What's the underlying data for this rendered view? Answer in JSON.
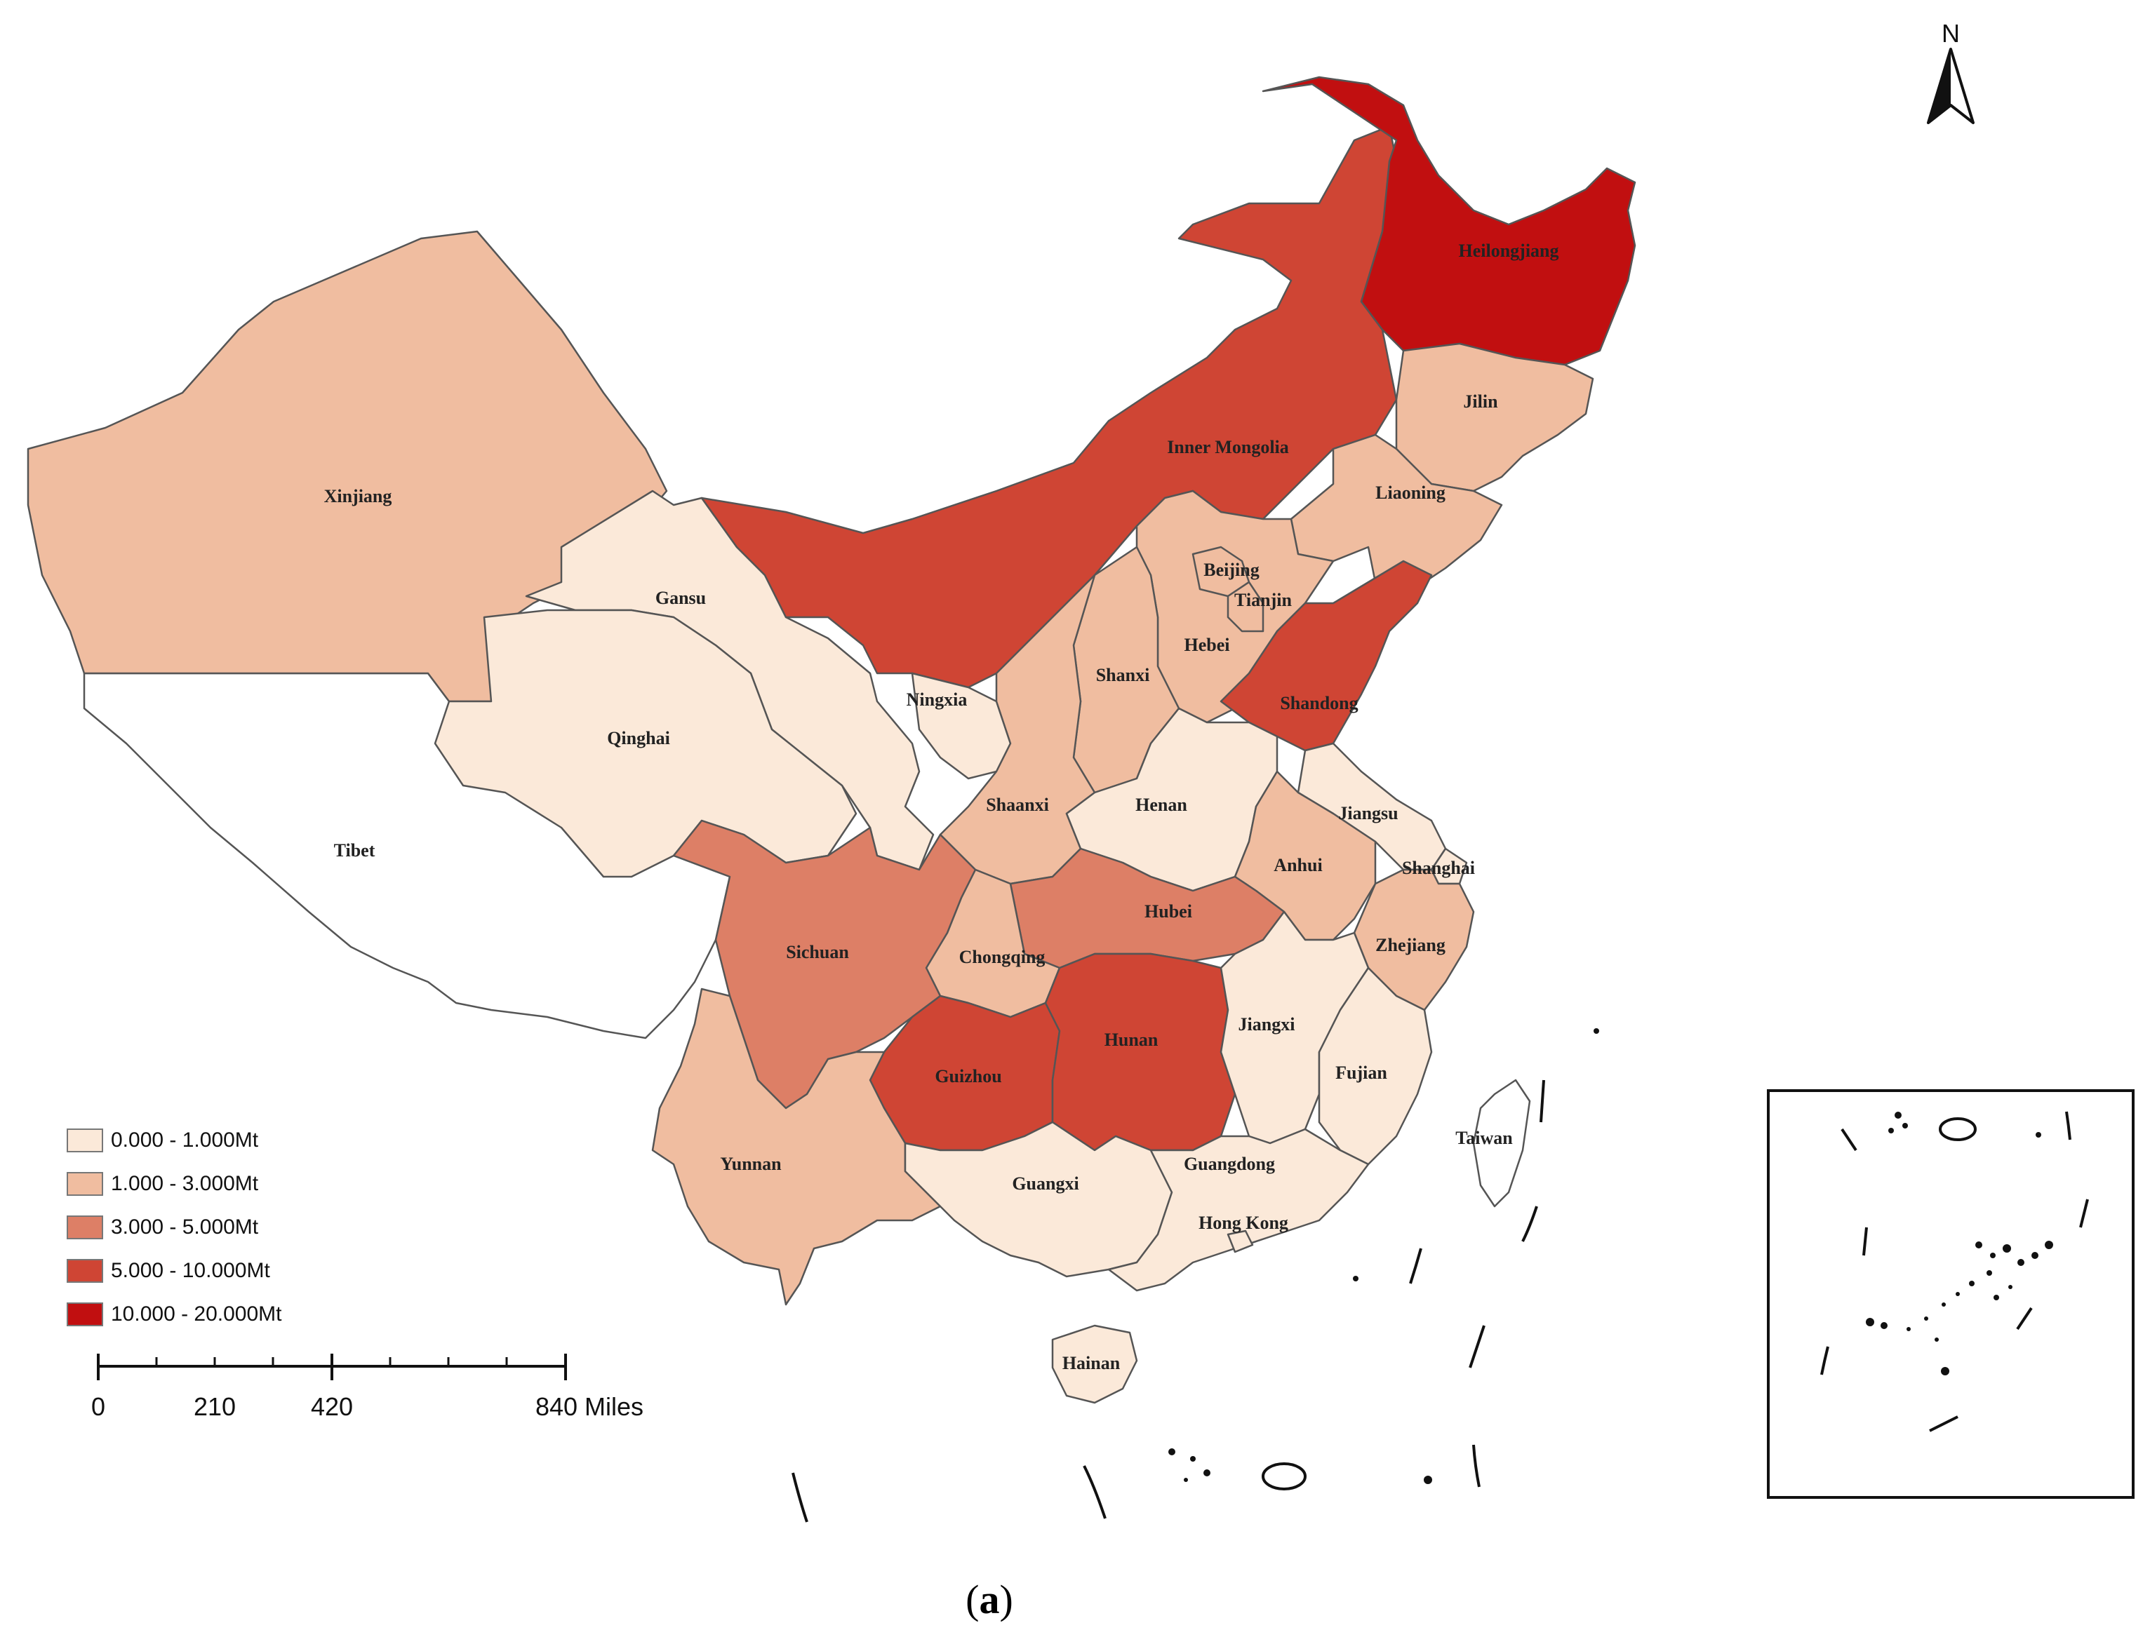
{
  "map": {
    "north_label": "N",
    "caption_open": "(",
    "caption_letter": "a",
    "caption_close": ")",
    "colors": {
      "c1": "#fbe9d9",
      "c2": "#f0bda0",
      "c3": "#dd7f66",
      "c4": "#cf4534",
      "c5": "#c10f10",
      "none": "#ffffff"
    },
    "provinces": [
      {
        "id": "heilongjiang",
        "label": "Heilongjiang",
        "class": "c5"
      },
      {
        "id": "jilin",
        "label": "Jilin",
        "class": "c2"
      },
      {
        "id": "liaoning",
        "label": "Liaoning",
        "class": "c2"
      },
      {
        "id": "inner-mongolia",
        "label": "Inner Mongolia",
        "class": "c4"
      },
      {
        "id": "xinjiang",
        "label": "Xinjiang",
        "class": "c2"
      },
      {
        "id": "gansu",
        "label": "Gansu",
        "class": "c1"
      },
      {
        "id": "qinghai",
        "label": "Qinghai",
        "class": "c1"
      },
      {
        "id": "tibet",
        "label": "Tibet",
        "class": "none"
      },
      {
        "id": "ningxia",
        "label": "Ningxia",
        "class": "c1"
      },
      {
        "id": "beijing",
        "label": "Beijing",
        "class": "c2"
      },
      {
        "id": "tianjin",
        "label": "Tianjin",
        "class": "c2"
      },
      {
        "id": "hebei",
        "label": "Hebei",
        "class": "c2"
      },
      {
        "id": "shanxi",
        "label": "Shanxi",
        "class": "c2"
      },
      {
        "id": "shandong",
        "label": "Shandong",
        "class": "c4"
      },
      {
        "id": "shaanxi",
        "label": "Shaanxi",
        "class": "c2"
      },
      {
        "id": "henan",
        "label": "Henan",
        "class": "c1"
      },
      {
        "id": "jiangsu",
        "label": "Jiangsu",
        "class": "c1"
      },
      {
        "id": "shanghai",
        "label": "Shanghai",
        "class": "c1"
      },
      {
        "id": "anhui",
        "label": "Anhui",
        "class": "c2"
      },
      {
        "id": "hubei",
        "label": "Hubei",
        "class": "c3"
      },
      {
        "id": "sichuan",
        "label": "Sichuan",
        "class": "c3"
      },
      {
        "id": "chongqing",
        "label": "Chongqing",
        "class": "c2"
      },
      {
        "id": "zhejiang",
        "label": "Zhejiang",
        "class": "c2"
      },
      {
        "id": "hunan",
        "label": "Hunan",
        "class": "c4"
      },
      {
        "id": "guizhou",
        "label": "Guizhou",
        "class": "c4"
      },
      {
        "id": "jiangxi",
        "label": "Jiangxi",
        "class": "c1"
      },
      {
        "id": "fujian",
        "label": "Fujian",
        "class": "c1"
      },
      {
        "id": "yunnan",
        "label": "Yunnan",
        "class": "c2"
      },
      {
        "id": "guangxi",
        "label": "Guangxi",
        "class": "c1"
      },
      {
        "id": "guangdong",
        "label": "Guangdong",
        "class": "c1"
      },
      {
        "id": "hong-kong",
        "label": "Hong Kong",
        "class": "c1"
      },
      {
        "id": "taiwan",
        "label": "Taiwan",
        "class": "none"
      },
      {
        "id": "hainan",
        "label": "Hainan",
        "class": "c1"
      }
    ]
  },
  "legend": {
    "items": [
      {
        "label": "0.000 - 1.000Mt",
        "class": "c1"
      },
      {
        "label": "1.000 - 3.000Mt",
        "class": "c2"
      },
      {
        "label": "3.000 - 5.000Mt",
        "class": "c3"
      },
      {
        "label": "5.000 - 10.000Mt",
        "class": "c4"
      },
      {
        "label": "10.000 - 20.000Mt",
        "class": "c5"
      }
    ]
  },
  "scale_bar": {
    "labels": [
      "0",
      "210",
      "420",
      "840 Miles"
    ]
  }
}
